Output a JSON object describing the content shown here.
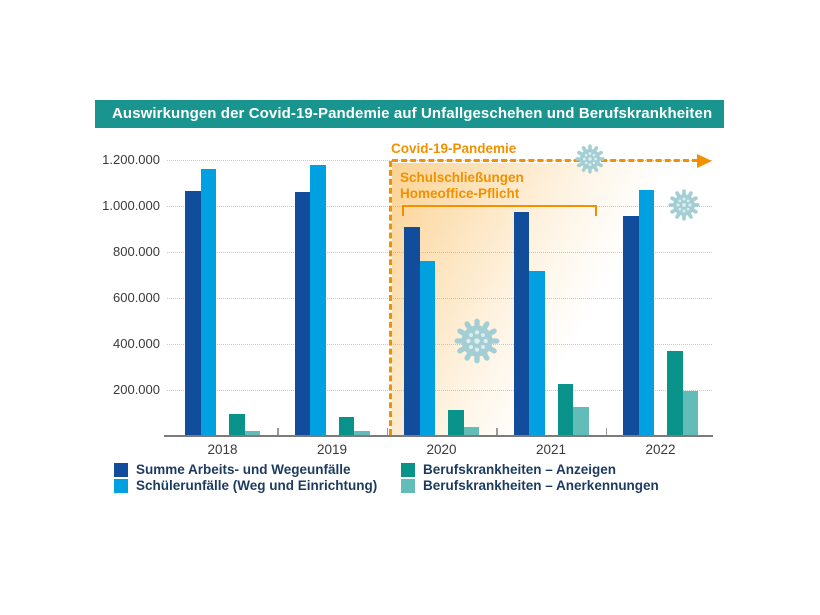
{
  "header": {
    "title": "Auswirkungen der Covid-19-Pandemie auf Unfallgeschehen und Berufskrankheiten",
    "bar_color": "#1a948e",
    "text_color": "#ffffff"
  },
  "colors": {
    "accent_orange": "#f29100",
    "gridline": "#c9c9c9",
    "axis": "#7b7b7b",
    "virus_body": "#a3ced3",
    "virus_dots": "#ddeef0",
    "legend_text": "#1d3a5f"
  },
  "chart_data": {
    "type": "bar",
    "title": "Auswirkungen der Covid-19-Pandemie auf Unfallgeschehen und Berufskrankheiten",
    "categories": [
      "2018",
      "2019",
      "2020",
      "2021",
      "2022"
    ],
    "series": [
      {
        "name": "Summe Arbeits- und Wegeunfälle",
        "color": "#124d9c",
        "values": [
          1065000,
          1060000,
          910000,
          975000,
          955000
        ]
      },
      {
        "name": "Schülerunfälle (Weg und Einrichtung)",
        "color": "#00a0e1",
        "values": [
          1160000,
          1180000,
          760000,
          715000,
          1070000
        ]
      },
      {
        "name": "Berufskrankheiten – Anzeigen",
        "color": "#0a938a",
        "values": [
          95000,
          80000,
          110000,
          225000,
          370000
        ]
      },
      {
        "name": "Berufskrankheiten – Anerkennungen",
        "color": "#62bdb8",
        "values": [
          20000,
          18000,
          35000,
          125000,
          195000
        ]
      }
    ],
    "ylim": [
      0,
      1200000
    ],
    "y_ticks": [
      {
        "value": 200000,
        "label": "200.000"
      },
      {
        "value": 400000,
        "label": "400.000"
      },
      {
        "value": 600000,
        "label": "600.000"
      },
      {
        "value": 800000,
        "label": "800.000"
      },
      {
        "value": 1000000,
        "label": "1.000.000"
      },
      {
        "value": 1200000,
        "label": "1.200.000"
      }
    ],
    "grid": "horizontal-dotted",
    "legend_position": "bottom",
    "annotations": {
      "pandemic_label": "Covid-19-Pandemie",
      "measures_line1": "Schulschließungen",
      "measures_line2": "Homeoffice-Pflicht",
      "pandemic_start_category": "2020",
      "icons": [
        "coronavirus-icon",
        "coronavirus-icon",
        "coronavirus-icon"
      ]
    }
  }
}
